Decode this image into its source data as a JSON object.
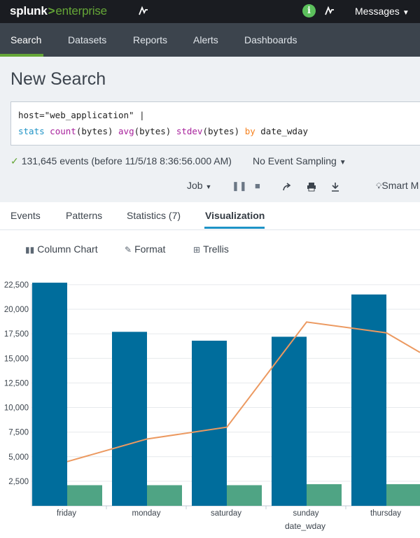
{
  "header": {
    "logo_brand": "splunk",
    "logo_sep": ">",
    "logo_product": "enterprise",
    "messages_label": "Messages",
    "info_glyph": "i"
  },
  "nav": {
    "items": [
      {
        "label": "Search",
        "active": true
      },
      {
        "label": "Datasets"
      },
      {
        "label": "Reports"
      },
      {
        "label": "Alerts"
      },
      {
        "label": "Dashboards"
      }
    ]
  },
  "search": {
    "title": "New Search",
    "line1": {
      "text": "host=\"web_application\" |"
    },
    "line2": {
      "cmd": "stats",
      "f1": "count",
      "a1": "(bytes) ",
      "f2": "avg",
      "a2": "(bytes) ",
      "f3": "stdev",
      "a3": "(bytes) ",
      "kw": "by",
      "field": " date_wday"
    },
    "status": "131,645 events (before 11/5/18 8:36:56.000 AM)",
    "sampling": "No Event Sampling",
    "job_label": "Job",
    "smart_label": "Smart M"
  },
  "tabs": [
    {
      "label": "Events"
    },
    {
      "label": "Patterns"
    },
    {
      "label": "Statistics (7)"
    },
    {
      "label": "Visualization",
      "active": true
    }
  ],
  "viz_toolbar": {
    "chart_type": "Column Chart",
    "format": "Format",
    "trellis": "Trellis"
  },
  "colors": {
    "topbar": "#1a1c21",
    "appbar": "#3c444d",
    "accent_green": "#65a637",
    "tab_blue": "#1e93c6",
    "series_count": "#006d9c",
    "series_avg": "#4fa484",
    "series_stdev": "#ec9960"
  },
  "chart_data": {
    "type": "bar",
    "xlabel": "date_wday",
    "ylabel": "",
    "ylim": [
      0,
      23000
    ],
    "yticks": [
      2500,
      5000,
      7500,
      10000,
      12500,
      15000,
      17500,
      20000,
      22500
    ],
    "ytick_labels": [
      "2,500",
      "5,000",
      "7,500",
      "10,000",
      "12,500",
      "15,000",
      "17,500",
      "20,000",
      "22,500"
    ],
    "categories": [
      "friday",
      "monday",
      "saturday",
      "sunday",
      "thursday"
    ],
    "series": [
      {
        "values": [
          22700,
          17700,
          16800,
          17200,
          21500
        ],
        "kind": "bar"
      },
      {
        "values": [
          2100,
          2100,
          2100,
          2200,
          2200
        ],
        "kind": "bar"
      },
      {
        "values": [
          4500,
          6800,
          8000,
          18700,
          17600
        ],
        "kind": "line"
      }
    ],
    "line_trailing_value": 15600,
    "grid": true
  }
}
